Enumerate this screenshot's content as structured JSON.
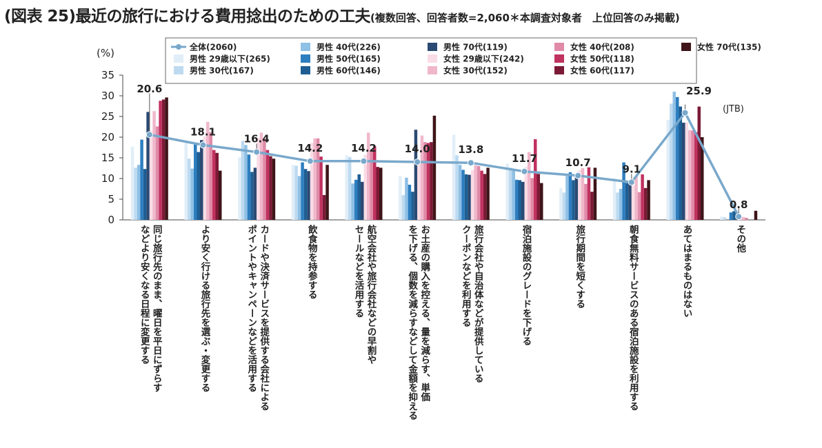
{
  "title": {
    "main": "(図表 25)最近の旅行における費用捻出のための工夫",
    "sub": "(複数回答、回答者数=2,060＊本調査対象者　上位回答のみ掲載)"
  },
  "source": "(JTB)",
  "chart_data": {
    "type": "bar",
    "unit_label": "(%)",
    "ylim": [
      0,
      35
    ],
    "yticks": [
      "0",
      "5",
      "10",
      "15",
      "20",
      "25",
      "30",
      "35"
    ],
    "categories": [
      [
        "同じ旅行先のまま、曜日を平日にずらす",
        "などより安くなる日程に変更する"
      ],
      [
        "より安く行ける旅行先を選ぶ・変更する"
      ],
      [
        "カードや決済サービスを提供する会社による",
        "ポイントやキャンペーンなどを活用する"
      ],
      [
        "飲食物を持参する"
      ],
      [
        "航空会社や旅行会社などの早割や",
        "セールなどを活用する"
      ],
      [
        "お土産の購入を控える、量を減らす、単価",
        "を下げる、個数を減らすなどして金額を抑える"
      ],
      [
        "旅行会社や自治体などが提供している",
        "クーポンなどを利用する"
      ],
      [
        "宿泊施設のグレードを下げる"
      ],
      [
        "旅行期間を短くする"
      ],
      [
        "朝食無料サービスのある宿泊施設を利用する"
      ],
      [
        "あてはまるものはない"
      ],
      [
        "その他"
      ]
    ],
    "line_series": {
      "name": "全体(2060)",
      "color": "#79A8CB",
      "values": [
        20.6,
        18.1,
        16.4,
        14.2,
        14.2,
        14.0,
        13.8,
        11.7,
        10.7,
        9.1,
        25.9,
        0.8
      ],
      "labels": [
        "20.6",
        "18.1",
        "16.4",
        "14.2",
        "14.2",
        "14.0",
        "13.8",
        "11.7",
        "10.7",
        "9.1",
        "25.9",
        "0.8"
      ]
    },
    "series": [
      {
        "name": "男性 29歳以下(265)",
        "color": "#E1EEF8",
        "values": [
          17.7,
          18.6,
          15.1,
          13.3,
          15.6,
          10.6,
          20.6,
          13.6,
          7.7,
          10.0,
          24.2,
          0.8
        ]
      },
      {
        "name": "男性 30代(167)",
        "color": "#BDDAF0",
        "values": [
          12.6,
          14.8,
          19.1,
          13.1,
          15.2,
          6.0,
          15.6,
          12.6,
          6.6,
          6.6,
          28.1,
          0.6
        ]
      },
      {
        "name": "男性 40代(226)",
        "color": "#8FC0E5",
        "values": [
          13.3,
          12.4,
          18.1,
          10.6,
          8.8,
          10.2,
          13.3,
          11.9,
          10.6,
          7.5,
          31.0,
          0.0
        ]
      },
      {
        "name": "男性 50代(165)",
        "color": "#2D7EBF",
        "values": [
          19.4,
          18.2,
          15.8,
          13.9,
          9.7,
          8.5,
          12.1,
          9.7,
          11.5,
          13.9,
          29.7,
          1.8
        ]
      },
      {
        "name": "男性 60代(146)",
        "color": "#1F5E93",
        "values": [
          12.3,
          16.4,
          11.6,
          12.3,
          11.0,
          6.8,
          11.0,
          9.6,
          9.6,
          8.9,
          27.4,
          2.1
        ]
      },
      {
        "name": "男性 70代(119)",
        "color": "#2B4A73",
        "values": [
          26.1,
          19.3,
          12.6,
          11.8,
          9.2,
          21.8,
          10.9,
          9.2,
          10.9,
          9.2,
          23.5,
          1.7
        ]
      },
      {
        "name": "女性 29歳以下(242)",
        "color": "#F9DCE6",
        "values": [
          21.5,
          20.2,
          19.8,
          18.6,
          15.7,
          13.6,
          12.0,
          12.8,
          12.0,
          8.3,
          23.6,
          0.4
        ]
      },
      {
        "name": "女性 30代(152)",
        "color": "#F0B7CA",
        "values": [
          26.3,
          23.7,
          21.1,
          19.7,
          21.1,
          20.4,
          13.2,
          16.4,
          12.5,
          10.5,
          21.7,
          0.7
        ]
      },
      {
        "name": "女性 40代(208)",
        "color": "#E08AA8",
        "values": [
          22.6,
          21.2,
          19.7,
          19.7,
          16.8,
          18.8,
          13.0,
          10.1,
          8.7,
          6.7,
          21.6,
          0.5
        ]
      },
      {
        "name": "女性 50代(118)",
        "color": "#C0325F",
        "values": [
          28.8,
          16.9,
          16.9,
          15.3,
          17.8,
          18.6,
          11.9,
          19.5,
          12.7,
          11.0,
          21.2,
          0.0
        ]
      },
      {
        "name": "女性 60代(117)",
        "color": "#7B1A36",
        "values": [
          29.1,
          16.2,
          15.4,
          6.0,
          12.8,
          18.8,
          11.1,
          11.1,
          6.8,
          7.7,
          27.4,
          0.0
        ]
      },
      {
        "name": "女性 70代(135)",
        "color": "#3F1519",
        "values": [
          29.6,
          11.9,
          14.8,
          13.3,
          12.6,
          25.2,
          12.6,
          8.9,
          12.6,
          9.6,
          20.0,
          2.2
        ]
      }
    ],
    "legend": "top"
  }
}
